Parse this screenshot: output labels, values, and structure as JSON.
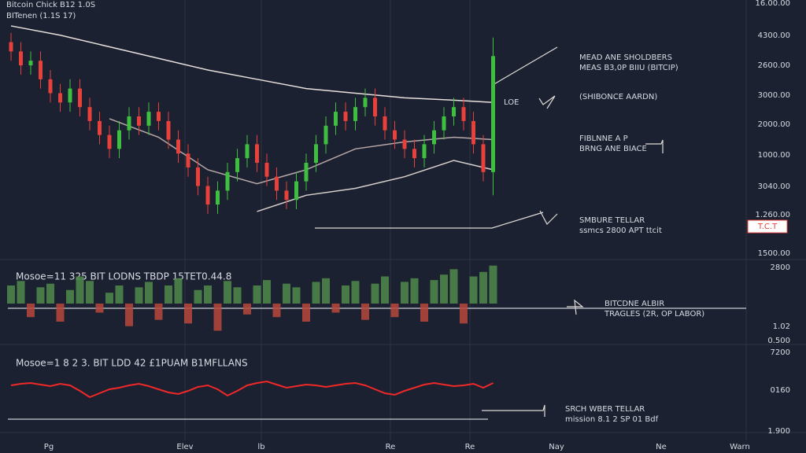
{
  "chart_data": [
    {
      "type": "candlestick",
      "title": "Bitcoin Chick B12 1.0S",
      "subtitle": "BITenen (1.1S 17)",
      "open": [
        92,
        88,
        82,
        84,
        76,
        70,
        66,
        72,
        64,
        58,
        52,
        46,
        54,
        60,
        56,
        62,
        58,
        50,
        44,
        38,
        30,
        22,
        28,
        36,
        42,
        48,
        40,
        34,
        28,
        24,
        32,
        40,
        48,
        56,
        62,
        58,
        64,
        68,
        60,
        54,
        50,
        46,
        42,
        48,
        54,
        60,
        64,
        58,
        48,
        36
      ],
      "high": [
        96,
        92,
        88,
        88,
        80,
        74,
        76,
        76,
        68,
        62,
        56,
        58,
        64,
        64,
        66,
        66,
        62,
        54,
        48,
        42,
        34,
        32,
        40,
        46,
        52,
        52,
        44,
        38,
        32,
        36,
        44,
        52,
        60,
        66,
        66,
        68,
        72,
        72,
        64,
        58,
        54,
        50,
        52,
        58,
        64,
        68,
        68,
        62,
        52,
        94
      ],
      "low": [
        84,
        78,
        78,
        72,
        66,
        62,
        62,
        60,
        54,
        48,
        42,
        42,
        50,
        52,
        52,
        54,
        46,
        40,
        34,
        26,
        18,
        18,
        24,
        32,
        38,
        36,
        30,
        24,
        20,
        20,
        28,
        36,
        44,
        52,
        54,
        54,
        60,
        56,
        50,
        46,
        42,
        38,
        38,
        44,
        50,
        56,
        54,
        44,
        32,
        26
      ],
      "close": [
        88,
        82,
        84,
        76,
        70,
        66,
        72,
        64,
        58,
        52,
        46,
        54,
        60,
        56,
        62,
        58,
        50,
        44,
        38,
        30,
        22,
        28,
        36,
        42,
        48,
        40,
        34,
        28,
        24,
        32,
        40,
        48,
        56,
        62,
        58,
        64,
        68,
        60,
        54,
        50,
        46,
        42,
        48,
        54,
        60,
        64,
        58,
        48,
        36,
        86
      ],
      "ylim": [
        0,
        100
      ],
      "up_color": "#3fbf3f",
      "down_color": "#e8403a",
      "overlays": [
        {
          "color": "#e8e0dc",
          "x": [
            0,
            5,
            10,
            15,
            20,
            25,
            30,
            35,
            40,
            45,
            49
          ],
          "values": [
            99,
            95,
            90,
            85,
            80,
            76,
            72,
            70,
            68,
            67,
            66
          ]
        },
        {
          "color": "#b8a8a8",
          "x": [
            10,
            15,
            20,
            25,
            30,
            35,
            40,
            45,
            49
          ],
          "values": [
            59,
            51,
            37,
            31,
            37,
            46,
            49,
            51,
            50
          ]
        },
        {
          "color": "#d8d0cc",
          "x": [
            25,
            30,
            35,
            40,
            45,
            49
          ],
          "values": [
            19,
            26,
            29,
            34,
            41,
            37
          ]
        }
      ],
      "price_labels": [
        "16.00.00",
        "4300.00",
        "2600.00",
        "3000.00",
        "2000.00",
        "1000.00",
        "3040.00",
        "1.260.00",
        "1500.00"
      ],
      "price_tag": "T.C.T"
    },
    {
      "type": "bar",
      "title": "Mosoe=11 325 BIT LODNS TBDP 15TET0.44.8",
      "values": [
        20,
        25,
        -15,
        18,
        22,
        -20,
        15,
        30,
        25,
        -10,
        12,
        20,
        -25,
        18,
        24,
        -18,
        20,
        28,
        -22,
        15,
        20,
        -30,
        25,
        18,
        -12,
        20,
        26,
        -15,
        22,
        18,
        -20,
        24,
        28,
        -10,
        20,
        25,
        -18,
        22,
        30,
        -15,
        24,
        28,
        -20,
        26,
        32,
        38,
        -22,
        30,
        35,
        42
      ],
      "ylim": [
        -40,
        40
      ],
      "up_color": "#4f8a4a",
      "down_color": "#b8483c",
      "price_labels": [
        "2800",
        "1.02",
        "0.500"
      ]
    },
    {
      "type": "line",
      "title": "Mosoe=1 8 2 3. BIT LDD 42 £1PUAM B1MFLLANS",
      "values": [
        55,
        57,
        58,
        56,
        54,
        57,
        55,
        48,
        40,
        45,
        50,
        52,
        55,
        57,
        54,
        50,
        46,
        44,
        48,
        53,
        55,
        50,
        42,
        48,
        55,
        58,
        60,
        56,
        52,
        54,
        56,
        55,
        53,
        55,
        57,
        58,
        55,
        50,
        45,
        43,
        48,
        52,
        56,
        58,
        56,
        54,
        55,
        57,
        52,
        58
      ],
      "ylim": [
        0,
        100
      ],
      "color": "#f02828",
      "price_labels": [
        "7200",
        "0160",
        "1.900"
      ]
    }
  ],
  "annotations": [
    {
      "lines": [
        "MEAD ANE SHOLDBERS",
        "MEAS B3,0P BIIU (BITCIP)"
      ]
    },
    {
      "lines": [
        "LOE"
      ]
    },
    {
      "lines": [
        "(SHIBONCE AARDN)"
      ]
    },
    {
      "lines": [
        "FIBLNNE A P",
        "BRNG ANE BIACE"
      ]
    },
    {
      "lines": [
        "SMBURE TELLAR",
        "ssmcs 2800 APT ttcit"
      ]
    },
    {
      "lines": [
        "BITCDNE ALBIR",
        "TRAGLES (2R, OP LABOR)"
      ]
    },
    {
      "lines": [
        "SRCH WBER TELLAR",
        "mission 8.1 2 SP 01 Bdf"
      ]
    }
  ],
  "time_labels": [
    "Pg",
    "Elev",
    "lb",
    "Re",
    "Re",
    "Nay",
    "Ne",
    "Warn"
  ]
}
